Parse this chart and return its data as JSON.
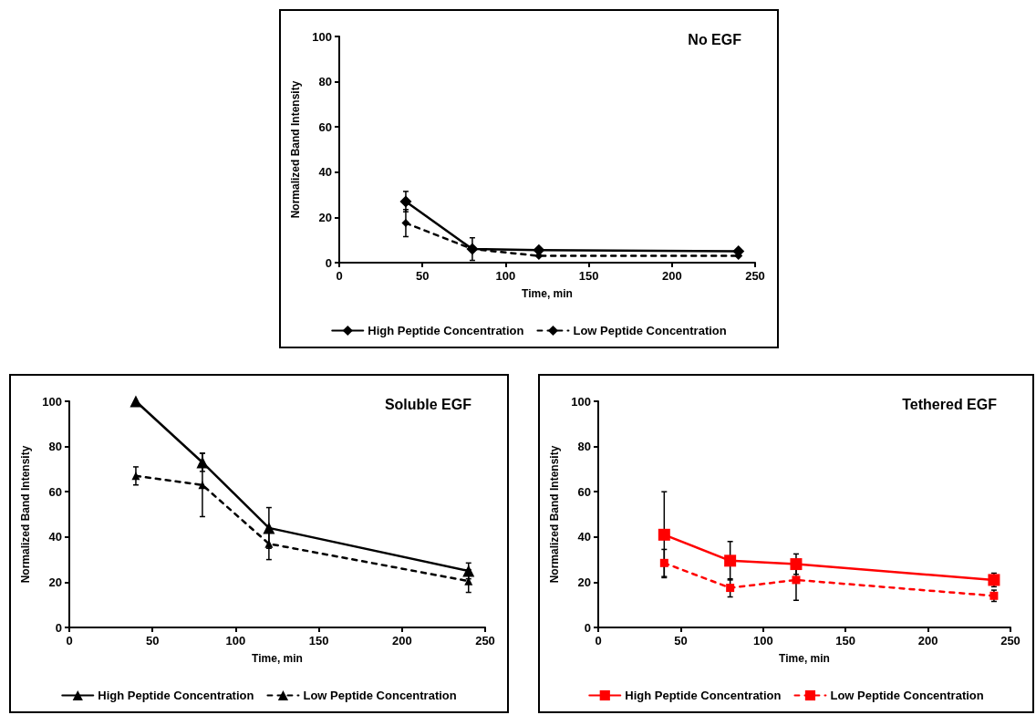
{
  "chart_data": [
    {
      "type": "line",
      "title": "No EGF",
      "xlabel": "Time, min",
      "ylabel": "Normalized Band Intensity",
      "xlim": [
        0,
        250
      ],
      "xticks": [
        0,
        50,
        100,
        150,
        200,
        250
      ],
      "ylim": [
        0,
        100
      ],
      "yticks": [
        0,
        20,
        40,
        60,
        80,
        100
      ],
      "x": [
        40,
        80,
        120,
        240
      ],
      "marker": "diamond",
      "legend": "bottom",
      "series": [
        {
          "name": "High Peptide Concentration",
          "color": "#000000",
          "line_style": "solid",
          "values": [
            27,
            6,
            5.5,
            5
          ],
          "errors": [
            4.5,
            5,
            null,
            null
          ]
        },
        {
          "name": "Low Peptide Concentration",
          "color": "#000000",
          "line_style": "dashed",
          "values": [
            17.5,
            6,
            3,
            3
          ],
          "errors": [
            6,
            null,
            null,
            null
          ]
        }
      ]
    },
    {
      "type": "line",
      "title": "Soluble EGF",
      "xlabel": "Time, min",
      "ylabel": "Normalized Band Intensity",
      "xlim": [
        0,
        250
      ],
      "xticks": [
        0,
        50,
        100,
        150,
        200,
        250
      ],
      "ylim": [
        0,
        100
      ],
      "yticks": [
        0,
        20,
        40,
        60,
        80,
        100
      ],
      "x": [
        40,
        80,
        120,
        240
      ],
      "marker": "triangle",
      "legend": "bottom",
      "series": [
        {
          "name": "High Peptide Concentration",
          "color": "#000000",
          "line_style": "solid",
          "values": [
            100,
            73,
            44,
            25
          ],
          "errors": [
            null,
            4,
            9,
            3.5
          ]
        },
        {
          "name": "Low Peptide Concentration",
          "color": "#000000",
          "line_style": "dashed",
          "values": [
            67,
            63,
            37,
            20.5
          ],
          "errors": [
            4,
            14,
            7,
            5
          ]
        }
      ]
    },
    {
      "type": "line",
      "title": "Tethered EGF",
      "xlabel": "Time, min",
      "ylabel": "Normalized Band Intensity",
      "xlim": [
        0,
        250
      ],
      "xticks": [
        0,
        50,
        100,
        150,
        200,
        250
      ],
      "ylim": [
        0,
        100
      ],
      "yticks": [
        0,
        20,
        40,
        60,
        80,
        100
      ],
      "x": [
        40,
        80,
        120,
        240
      ],
      "marker": "square",
      "legend": "bottom",
      "series": [
        {
          "name": "High Peptide Concentration",
          "color": "#ff0000",
          "line_style": "solid",
          "values": [
            41,
            29.5,
            28,
            21
          ],
          "errors": [
            19,
            8.5,
            4.5,
            3
          ]
        },
        {
          "name": "Low Peptide Concentration",
          "color": "#ff0000",
          "line_style": "dashed",
          "values": [
            28.5,
            17.5,
            21,
            14
          ],
          "errors": [
            6,
            4,
            9,
            2.5
          ]
        }
      ]
    }
  ]
}
